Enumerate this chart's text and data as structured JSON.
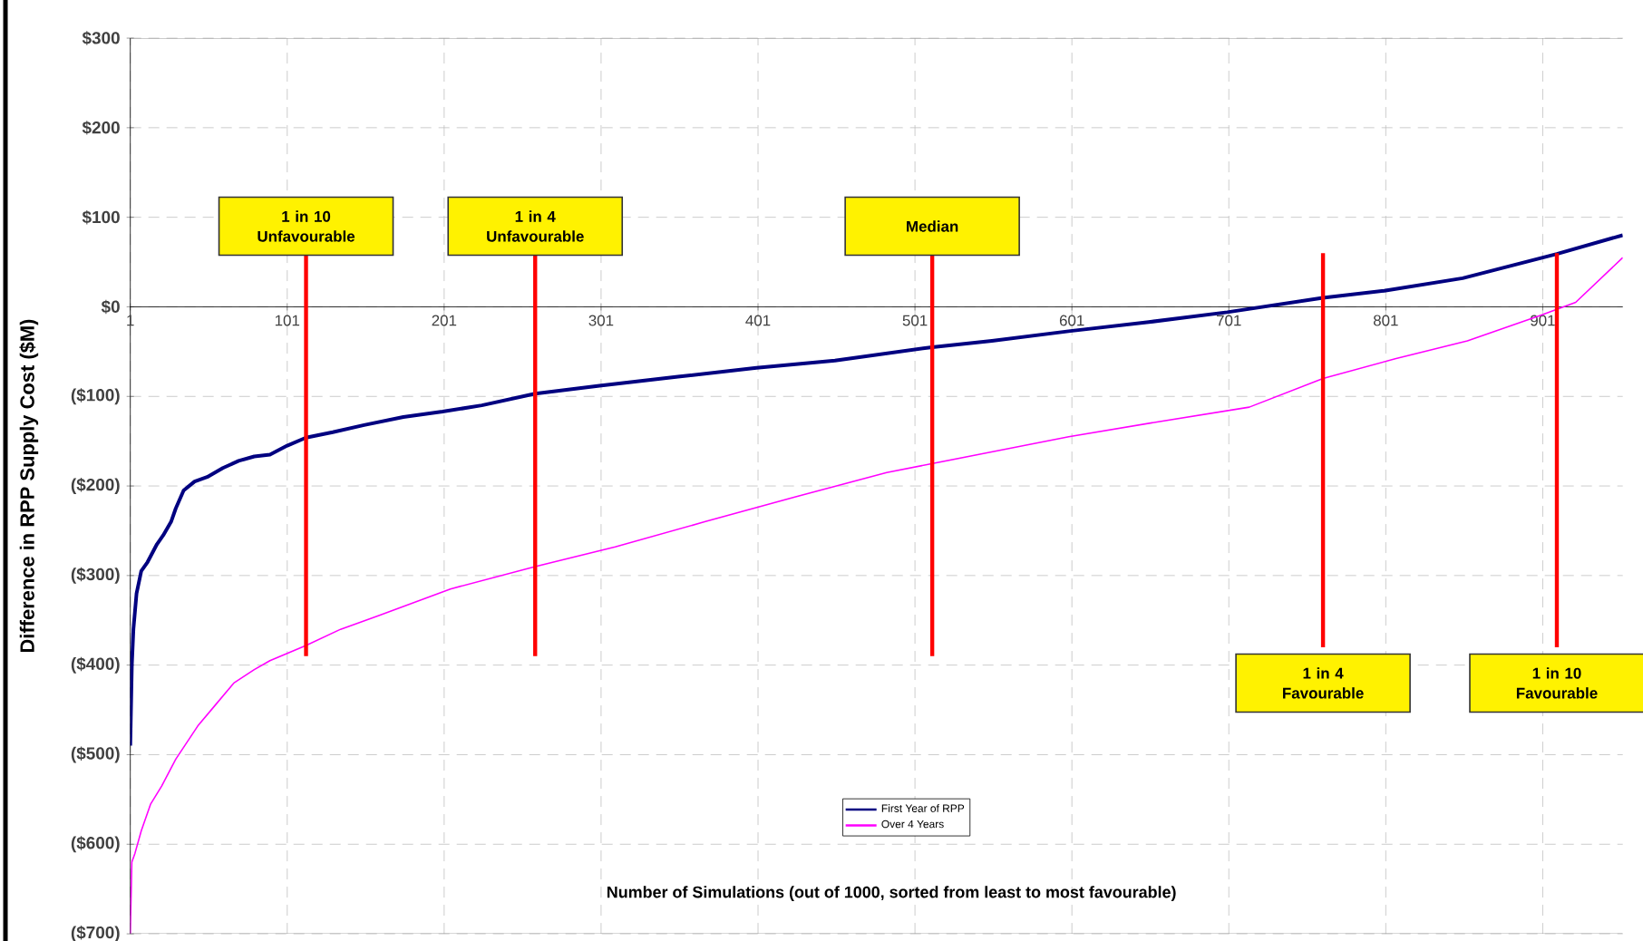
{
  "chart_data": {
    "type": "line",
    "xlabel": "Number of Simulations (out of 1000, sorted from least to most favourable)",
    "ylabel": "Difference in RPP Supply Cost ($M)",
    "xlim": [
      1,
      952
    ],
    "ylim": [
      -700,
      300
    ],
    "xticks": [
      1,
      101,
      201,
      301,
      401,
      501,
      601,
      701,
      801,
      901
    ],
    "yticks": [
      {
        "value": 300,
        "label": "$300"
      },
      {
        "value": 200,
        "label": "$200"
      },
      {
        "value": 100,
        "label": "$100"
      },
      {
        "value": 0,
        "label": "$0"
      },
      {
        "value": -100,
        "label": "($100)"
      },
      {
        "value": -200,
        "label": "($200)"
      },
      {
        "value": -300,
        "label": "($300)"
      },
      {
        "value": -400,
        "label": "($400)"
      },
      {
        "value": -500,
        "label": "($500)"
      },
      {
        "value": -600,
        "label": "($600)"
      },
      {
        "value": -700,
        "label": "($700)"
      }
    ],
    "grid": true,
    "legend": "bottom",
    "line_style": "solid",
    "marker": "none",
    "series": [
      {
        "name": "First Year of RPP",
        "color": "#000080",
        "x": [
          1,
          2,
          3,
          5,
          8,
          12,
          18,
          22,
          27,
          30,
          35,
          42,
          50,
          60,
          70,
          80,
          90,
          101,
          113,
          130,
          150,
          175,
          200,
          225,
          259,
          300,
          350,
          400,
          450,
          512,
          550,
          600,
          650,
          700,
          761,
          800,
          850,
          910,
          952
        ],
        "values": [
          -490,
          -400,
          -360,
          -320,
          -295,
          -285,
          -265,
          -255,
          -240,
          -225,
          -205,
          -195,
          -190,
          -180,
          -172,
          -167,
          -165,
          -155,
          -146,
          -140,
          -132,
          -123,
          -117,
          -110,
          -97,
          -88,
          -78,
          -68,
          -60,
          -45,
          -38,
          -27,
          -17,
          -6,
          10,
          18,
          32,
          59,
          80
        ]
      },
      {
        "name": "Over 4 Years",
        "color": "#ff00ff",
        "x": [
          1,
          2,
          4,
          8,
          14,
          21,
          30,
          44,
          55,
          67,
          80,
          90,
          113,
          135,
          159,
          205,
          259,
          310,
          367,
          425,
          483,
          541,
          599,
          657,
          714,
          761,
          807,
          853,
          899,
          922,
          952
        ],
        "values": [
          -700,
          -620,
          -610,
          -585,
          -555,
          -535,
          -505,
          -468,
          -445,
          -420,
          -405,
          -395,
          -378,
          -360,
          -345,
          -315,
          -290,
          -268,
          -240,
          -212,
          -185,
          -165,
          -145,
          -128,
          -112,
          -80,
          -58,
          -38,
          -10,
          5,
          55
        ]
      }
    ],
    "ref_lines": [
      {
        "axis": "x",
        "value": 113,
        "label": "1 in 10 Unfavourable",
        "color": "#ff0000"
      },
      {
        "axis": "x",
        "value": 259,
        "label": "1 in 4 Unfavourable",
        "color": "#ff0000"
      },
      {
        "axis": "x",
        "value": 512,
        "label": "Median",
        "color": "#ff0000"
      },
      {
        "axis": "x",
        "value": 761,
        "label": "1 in 4 Favourable",
        "color": "#ff0000"
      },
      {
        "axis": "x",
        "value": 910,
        "label": "1 in 10 Favourable",
        "color": "#ff0000"
      }
    ]
  }
}
